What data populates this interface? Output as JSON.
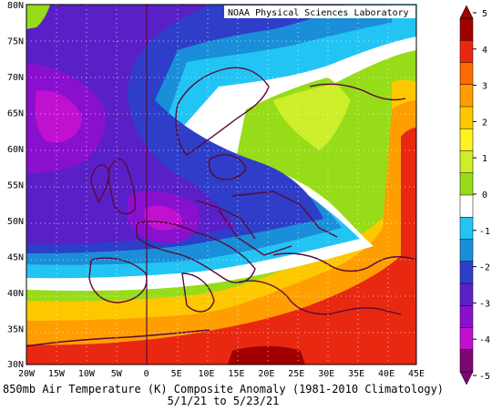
{
  "credit": "NOAA Physical Sciences Laboratory",
  "caption": {
    "line1": "850mb Air Temperature (K) Composite Anomaly (1981-2010 Climatology)",
    "line2": "5/1/21  to 5/23/21"
  },
  "map": {
    "lon_ticks": [
      "20W",
      "15W",
      "10W",
      "5W",
      "0",
      "5E",
      "10E",
      "15E",
      "20E",
      "25E",
      "30E",
      "35E",
      "40E",
      "45E"
    ],
    "lat_ticks": [
      "80N",
      "75N",
      "70N",
      "65N",
      "60N",
      "55N",
      "50N",
      "45N",
      "40N",
      "35N",
      "30N"
    ],
    "lon_range": [
      -20,
      45
    ],
    "lat_range": [
      30,
      80
    ]
  },
  "colorbar": {
    "labels": [
      "5",
      "4",
      "3",
      "2",
      "1",
      "0",
      "-1",
      "-2",
      "-3",
      "-4",
      "-5"
    ],
    "colors": [
      "#a00000",
      "#e82810",
      "#ff6a00",
      "#ff9e00",
      "#fdc800",
      "#fff222",
      "#ceee2a",
      "#96dc18",
      "#ffffff",
      "#22c4f4",
      "#1a8ed8",
      "#2e3ec8",
      "#5a20c8",
      "#8a10d0",
      "#c010d0",
      "#7a0870"
    ]
  }
}
